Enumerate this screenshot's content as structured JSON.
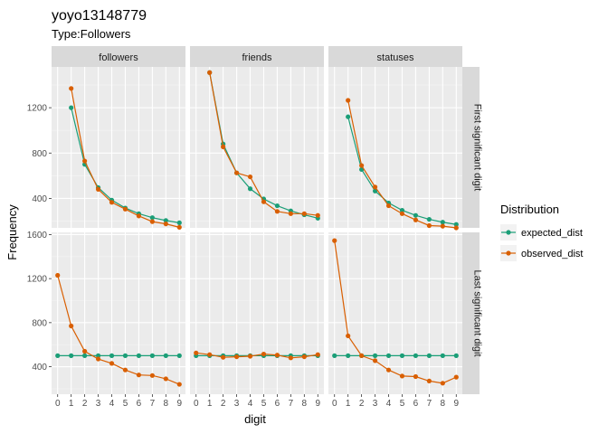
{
  "chart_data": {
    "type": "line",
    "title": "yoyo13148779",
    "subtitle": "Type:Followers",
    "xlabel": "digit",
    "ylabel": "Frequency",
    "x": [
      0,
      1,
      2,
      3,
      4,
      5,
      6,
      7,
      8,
      9
    ],
    "xticks": [
      "0",
      "1",
      "2",
      "3",
      "4",
      "5",
      "6",
      "7",
      "8",
      "9"
    ],
    "columns": [
      "followers",
      "friends",
      "statuses"
    ],
    "rows": [
      "First significant digit",
      "Last significant digit"
    ],
    "legend": {
      "title": "Distribution",
      "entries": [
        "expected_dist",
        "observed_dist"
      ],
      "placement": "right"
    },
    "colors": {
      "expected_dist": "#1b9e77",
      "observed_dist": "#d95f02"
    },
    "grid": true,
    "panels": [
      {
        "row": "First significant digit",
        "column": "followers",
        "ylim": [
          140,
          1560
        ],
        "yticks": [
          400,
          800,
          1200
        ],
        "series": [
          {
            "name": "expected_dist",
            "x": [
              1,
              2,
              3,
              4,
              5,
              6,
              7,
              8,
              9
            ],
            "values": [
              1200,
              700,
              495,
              385,
              315,
              265,
              230,
              205,
              185
            ]
          },
          {
            "name": "observed_dist",
            "x": [
              1,
              2,
              3,
              4,
              5,
              6,
              7,
              8,
              9
            ],
            "values": [
              1370,
              730,
              480,
              365,
              305,
              245,
              195,
              175,
              145
            ]
          }
        ]
      },
      {
        "row": "First significant digit",
        "column": "friends",
        "ylim": [
          140,
          1560
        ],
        "yticks": [
          400,
          800,
          1200
        ],
        "series": [
          {
            "name": "expected_dist",
            "x": [
              1,
              2,
              3,
              4,
              5,
              6,
              7,
              8,
              9
            ],
            "values": [
              1510,
              880,
              625,
              485,
              395,
              335,
              290,
              255,
              225
            ]
          },
          {
            "name": "observed_dist",
            "x": [
              1,
              2,
              3,
              4,
              5,
              6,
              7,
              8,
              9
            ],
            "values": [
              1510,
              855,
              625,
              590,
              370,
              285,
              265,
              265,
              250
            ]
          }
        ]
      },
      {
        "row": "First significant digit",
        "column": "statuses",
        "ylim": [
          140,
          1560
        ],
        "yticks": [
          400,
          800,
          1200
        ],
        "series": [
          {
            "name": "expected_dist",
            "x": [
              1,
              2,
              3,
              4,
              5,
              6,
              7,
              8,
              9
            ],
            "values": [
              1120,
              655,
              465,
              360,
              295,
              250,
              215,
              190,
              170
            ]
          },
          {
            "name": "observed_dist",
            "x": [
              1,
              2,
              3,
              4,
              5,
              6,
              7,
              8,
              9
            ],
            "values": [
              1265,
              690,
              500,
              335,
              265,
              210,
              160,
              155,
              140
            ]
          }
        ]
      },
      {
        "row": "Last significant digit",
        "column": "followers",
        "ylim": [
          150,
          1620
        ],
        "yticks": [
          400,
          800,
          1200,
          1600
        ],
        "series": [
          {
            "name": "expected_dist",
            "x": [
              0,
              1,
              2,
              3,
              4,
              5,
              6,
              7,
              8,
              9
            ],
            "values": [
              500,
              500,
              500,
              500,
              500,
              500,
              500,
              500,
              500,
              500
            ]
          },
          {
            "name": "observed_dist",
            "x": [
              0,
              1,
              2,
              3,
              4,
              5,
              6,
              7,
              8,
              9
            ],
            "values": [
              1230,
              770,
              540,
              470,
              430,
              370,
              325,
              320,
              290,
              240
            ]
          }
        ]
      },
      {
        "row": "Last significant digit",
        "column": "friends",
        "ylim": [
          150,
          1620
        ],
        "yticks": [
          400,
          800,
          1200,
          1600
        ],
        "series": [
          {
            "name": "expected_dist",
            "x": [
              0,
              1,
              2,
              3,
              4,
              5,
              6,
              7,
              8,
              9
            ],
            "values": [
              500,
              500,
              500,
              500,
              500,
              500,
              500,
              500,
              500,
              500
            ]
          },
          {
            "name": "observed_dist",
            "x": [
              0,
              1,
              2,
              3,
              4,
              5,
              6,
              7,
              8,
              9
            ],
            "values": [
              525,
              510,
              485,
              490,
              495,
              515,
              505,
              480,
              490,
              510
            ]
          }
        ]
      },
      {
        "row": "Last significant digit",
        "column": "statuses",
        "ylim": [
          150,
          1620
        ],
        "yticks": [
          400,
          800,
          1200,
          1600
        ],
        "series": [
          {
            "name": "expected_dist",
            "x": [
              0,
              1,
              2,
              3,
              4,
              5,
              6,
              7,
              8,
              9
            ],
            "values": [
              500,
              500,
              500,
              500,
              500,
              500,
              500,
              500,
              500,
              500
            ]
          },
          {
            "name": "observed_dist",
            "x": [
              0,
              1,
              2,
              3,
              4,
              5,
              6,
              7,
              8,
              9
            ],
            "values": [
              1545,
              680,
              500,
              455,
              370,
              315,
              310,
              270,
              250,
              305
            ]
          }
        ]
      }
    ]
  }
}
